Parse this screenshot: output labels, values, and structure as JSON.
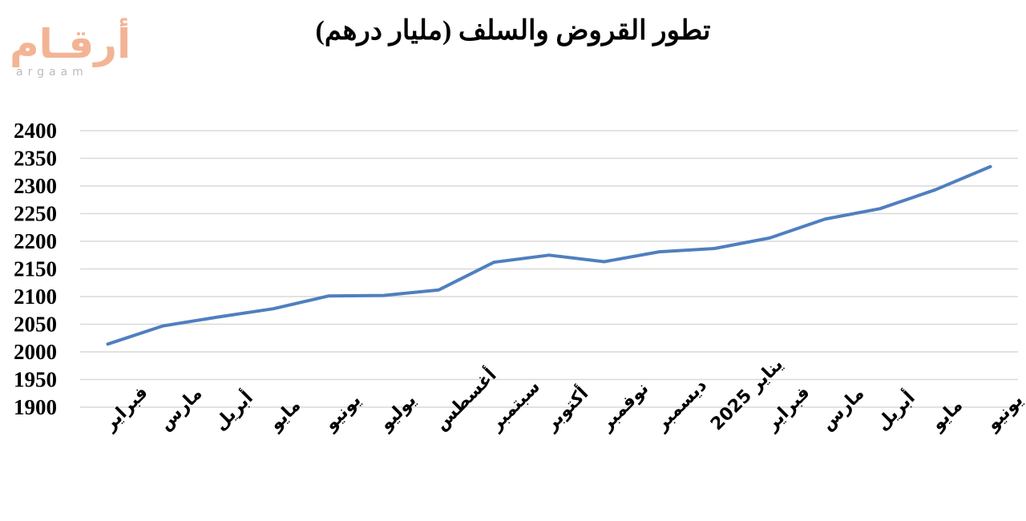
{
  "page": {
    "title": "تطور القروض والسلف (مليار درهم)",
    "logo": {
      "arabic": "أرقـام",
      "latin": "argaam"
    }
  },
  "chart_data": {
    "type": "line",
    "title": "تطور القروض والسلف (مليار درهم)",
    "xlabel": "",
    "ylabel": "",
    "ylim": [
      1900,
      2400
    ],
    "ytick_step": 50,
    "grid": true,
    "legend": "none",
    "categories": [
      "فبراير",
      "مارس",
      "أبريل",
      "مايو",
      "يونيو",
      "يوليو",
      "أغسطس",
      "سبتمبر",
      "أكتوبر",
      "نوفمبر",
      "ديسمبر",
      "يناير 2025",
      "فبراير",
      "مارس",
      "أبريل",
      "مايو",
      "يونيو"
    ],
    "series": [
      {
        "values": [
          2014,
          2047,
          2063,
          2078,
          2101,
          2102,
          2112,
          2162,
          2175,
          2163,
          2181,
          2187,
          2206,
          2240,
          2259,
          2293,
          2335
        ]
      }
    ],
    "line_color": "#4f7fbf",
    "grid_color": "#d9d9d9"
  }
}
